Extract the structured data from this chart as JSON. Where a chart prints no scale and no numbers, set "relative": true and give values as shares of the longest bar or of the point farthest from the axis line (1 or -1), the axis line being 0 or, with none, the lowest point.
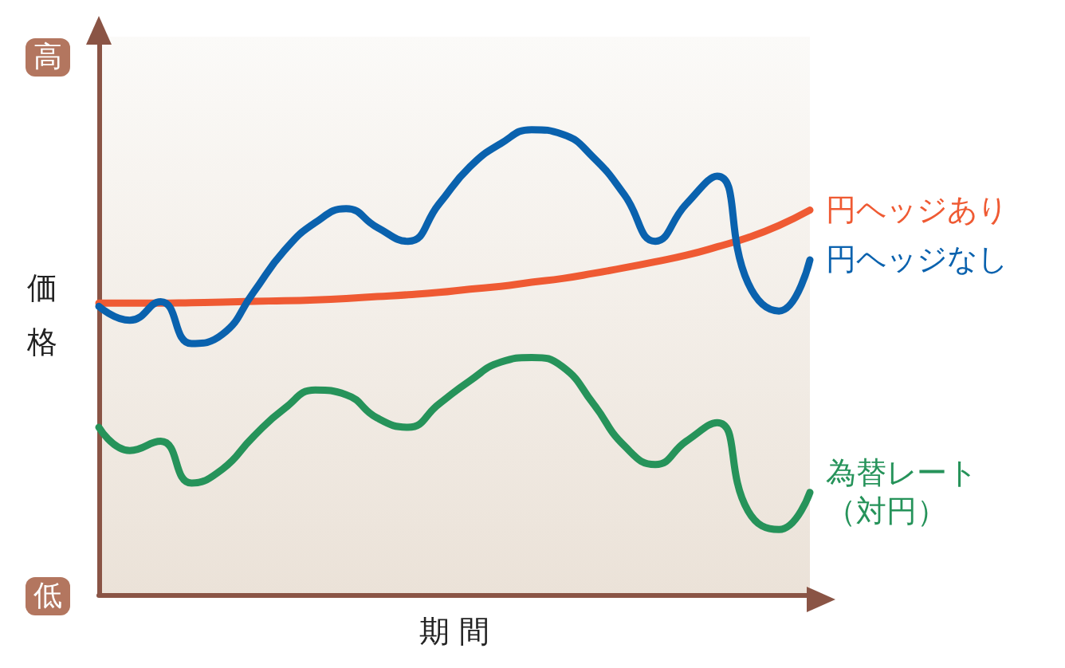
{
  "chart_data": {
    "type": "line",
    "relative": true,
    "xlabel": "期 間",
    "ylabel": "価格",
    "legend": false,
    "grid": false,
    "marker": "none",
    "line_style": "solid",
    "annotations": [
      "高",
      "低"
    ],
    "categories": [
      null,
      null,
      null,
      null,
      null,
      null,
      null,
      null,
      null,
      null,
      null,
      null,
      null,
      null,
      null,
      null,
      null,
      null,
      null,
      null,
      null,
      null,
      null,
      null
    ],
    "series": [
      {
        "name": "円ヘッジあり",
        "color": "#ef5a33",
        "values": [
          0.627,
          0.627,
          0.627,
          0.628,
          0.629,
          0.631,
          0.632,
          0.634,
          0.637,
          0.641,
          0.645,
          0.65,
          0.657,
          0.663,
          0.672,
          0.68,
          0.691,
          0.703,
          0.716,
          0.73,
          0.748,
          0.768,
          0.794,
          0.827
        ]
      },
      {
        "name": "円ヘッジなし",
        "color": "#0a62ae",
        "values": [
          0.62,
          0.59,
          0.63,
          0.54,
          0.56,
          0.65,
          0.74,
          0.8,
          0.83,
          0.79,
          0.76,
          0.84,
          0.92,
          0.97,
          1,
          0.99,
          0.94,
          0.86,
          0.76,
          0.84,
          0.9,
          0.67,
          0.61,
          0.72
        ]
      },
      {
        "name": "為替レート（対円）",
        "color": "#26935a",
        "values": [
          0.36,
          0.31,
          0.33,
          0.24,
          0.27,
          0.34,
          0.4,
          0.44,
          0.43,
          0.38,
          0.36,
          0.41,
          0.46,
          0.5,
          0.51,
          0.49,
          0.41,
          0.32,
          0.28,
          0.33,
          0.37,
          0.18,
          0.14,
          0.22
        ]
      }
    ]
  }
}
